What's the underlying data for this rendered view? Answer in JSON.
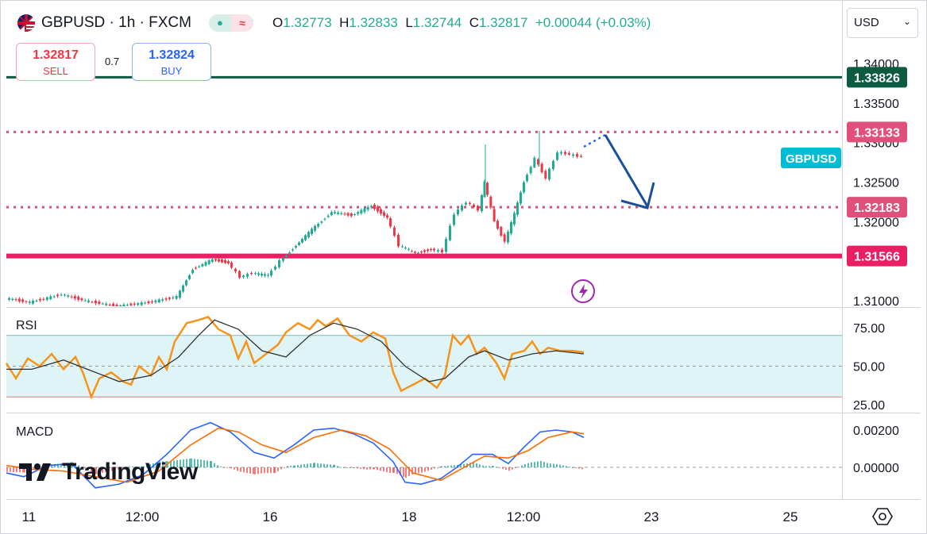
{
  "header": {
    "symbol": "GBPUSD",
    "separator": "·",
    "timeframe": "1h",
    "broker": "FXCM",
    "title_text": "GBPUSD · 1h · FXCM",
    "flag_icon": "uk-us-flag-icon",
    "status_pill": {
      "left_icon": "dot-icon",
      "right_icon": "wave-icon"
    },
    "ohlc": {
      "o_label": "O",
      "o": "1.32773",
      "h_label": "H",
      "h": "1.32833",
      "l_label": "L",
      "l": "1.32744",
      "c_label": "C",
      "c": "1.32817",
      "change": "+0.00044 (+0.03%)"
    }
  },
  "trade": {
    "sell_price": "1.32817",
    "sell_label": "SELL",
    "spread": "0.7",
    "buy_price": "1.32824",
    "buy_label": "BUY"
  },
  "currency_select": {
    "value": "USD",
    "icon": "chevron-down-icon"
  },
  "price_axis": {
    "ticks": [
      "1.34000",
      "1.33500",
      "1.33000",
      "1.32500",
      "1.32000",
      "1.31000"
    ],
    "levels": [
      {
        "price": "1.33826",
        "style": "solid",
        "color": "#0d5b3f",
        "label_bg": "#0d5b3f"
      },
      {
        "price": "1.33133",
        "style": "dotted",
        "color": "#e0507a",
        "label_bg": "#e0507a"
      },
      {
        "price": "1.32183",
        "style": "dotted",
        "color": "#e0507a",
        "label_bg": "#e0507a"
      },
      {
        "price": "1.31566",
        "style": "solid",
        "color": "#e91e63",
        "label_bg": "#e91e63"
      }
    ],
    "symbol_tag": "GBPUSD"
  },
  "rsi": {
    "label": "RSI",
    "ticks": [
      "75.00",
      "50.00",
      "25.00"
    ]
  },
  "macd": {
    "label": "MACD",
    "ticks": [
      "0.00200",
      "0.00000"
    ]
  },
  "time_axis": {
    "ticks": [
      "11",
      "12:00",
      "16",
      "18",
      "12:00",
      "23",
      "25"
    ]
  },
  "branding": {
    "logo_text": "TradingView",
    "logo_icon": "tradingview-logo-icon"
  },
  "icons": {
    "lightning": "lightning-icon",
    "settings": "settings-icon",
    "arrow": "down-arrow-icon"
  },
  "colors": {
    "up": "#22ab94",
    "down": "#f23645",
    "rsi_line": "#f7931a",
    "rsi_ma": "#333333",
    "rsi_band": "#dff4f7",
    "macd_line": "#2962ff",
    "signal_line": "#ff6d00",
    "arrow": "#1a4f9c",
    "badge": "#00bcd4"
  }
}
